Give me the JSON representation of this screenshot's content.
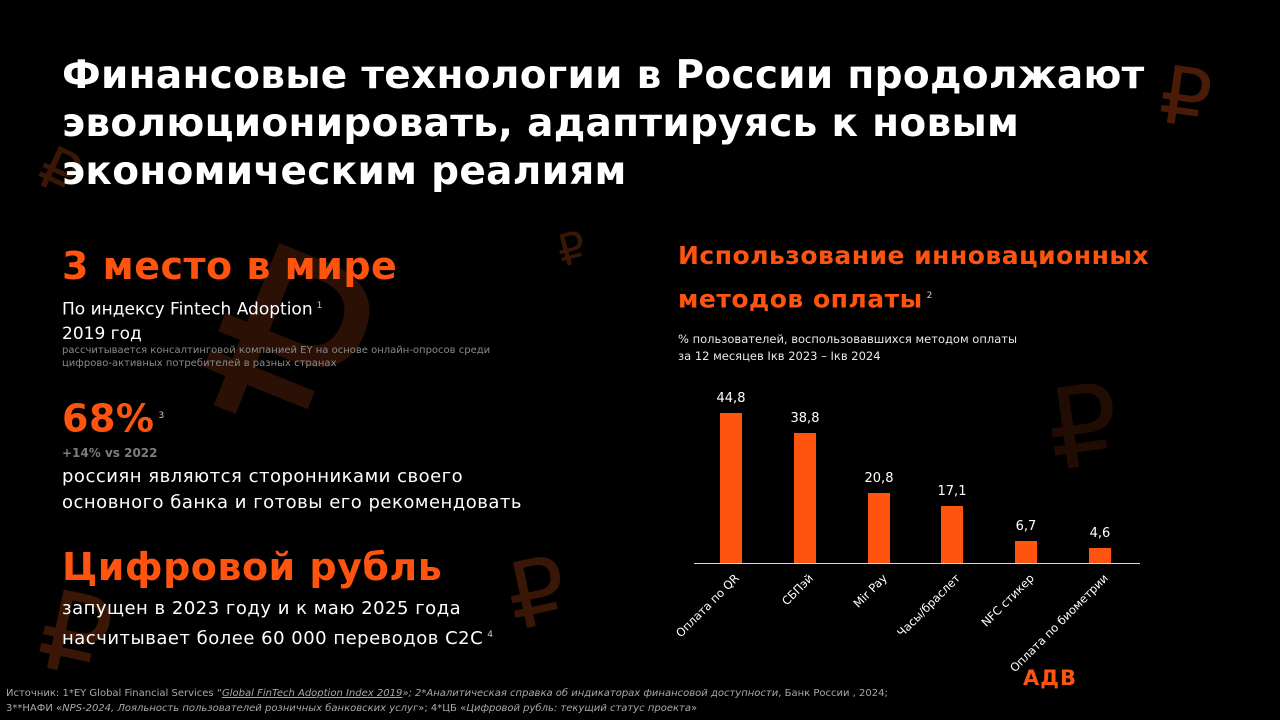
{
  "title": {
    "line1": "Финансовые технологии в России продолжают",
    "line2": "эволюционировать, адаптируясь к новым",
    "line3": "экономическим реалиям"
  },
  "stats": [
    {
      "headline": "3 место в мире",
      "subtitle_line1": "По индексу Fintech Adoption",
      "footnote": "1",
      "subtitle_line2": "2019 год",
      "note_line1": "рассчитывается консалтинговой компанией EY на основе онлайн-опросов среди",
      "note_line2": "цифрово-активных потребителей в разных странах"
    },
    {
      "headline": "68%",
      "footnote": "3",
      "delta": "+14% vs 2022",
      "desc_line1": "россиян являются сторонниками своего",
      "desc_line2": "основного банка и готовы его рекомендовать"
    },
    {
      "headline": "Цифровой рубль",
      "desc_line1": "запущен в 2023 году и к маю 2025 года",
      "desc_line2": "насчитывает более 60 000 переводов C2C",
      "footnote": "4"
    }
  ],
  "chart_data": {
    "type": "bar",
    "title": "Использование инновационных методов оплаты",
    "title_line1": "Использование инновационных",
    "title_line2": "методов оплаты",
    "title_footnote": "2",
    "subtitle_line1": "% пользователей, воспользовавшихся методом оплаты",
    "subtitle_line2": "за 12 месяцев Iкв 2023 – Iкв 2024",
    "xlabel": "",
    "ylabel": "% пользователей",
    "categories": [
      "Оплата по QR",
      "СБПэй",
      "Mir Pay",
      "Часы/браслет",
      "NFC стикер",
      "Оплата по биометрии"
    ],
    "values": [
      44.8,
      38.8,
      20.8,
      17.1,
      6.7,
      4.6
    ],
    "value_labels": [
      "44,8",
      "38,8",
      "20,8",
      "17,1",
      "6,7",
      "4,6"
    ],
    "ylim": [
      0,
      50
    ],
    "grid": false,
    "legend": "none",
    "bar_color": "#ff5410"
  },
  "footer": {
    "line1_a": "Источник: 1*EY Global Financial Services “",
    "line1_link": "Global FinTech Adoption Index 2019",
    "line1_b": "»; 2*Аналитическая справка об индикаторах финансовой доступности",
    "line1_c": ", Банк России , 2024;",
    "line2_a": "3**НАФИ «",
    "line2_b": "NPS-2024, Лояльность  пользователей  розничных банковских услуг",
    "line2_c": "»; 4*ЦБ «",
    "line2_d": "Цифровой рубль: текущий статус проекта",
    "line2_e": "»"
  },
  "logo": "АДВ",
  "colors": {
    "accent": "#ff5410",
    "background": "#000000",
    "decor": "#3a1606"
  },
  "decor_icon": "ruble-sign"
}
